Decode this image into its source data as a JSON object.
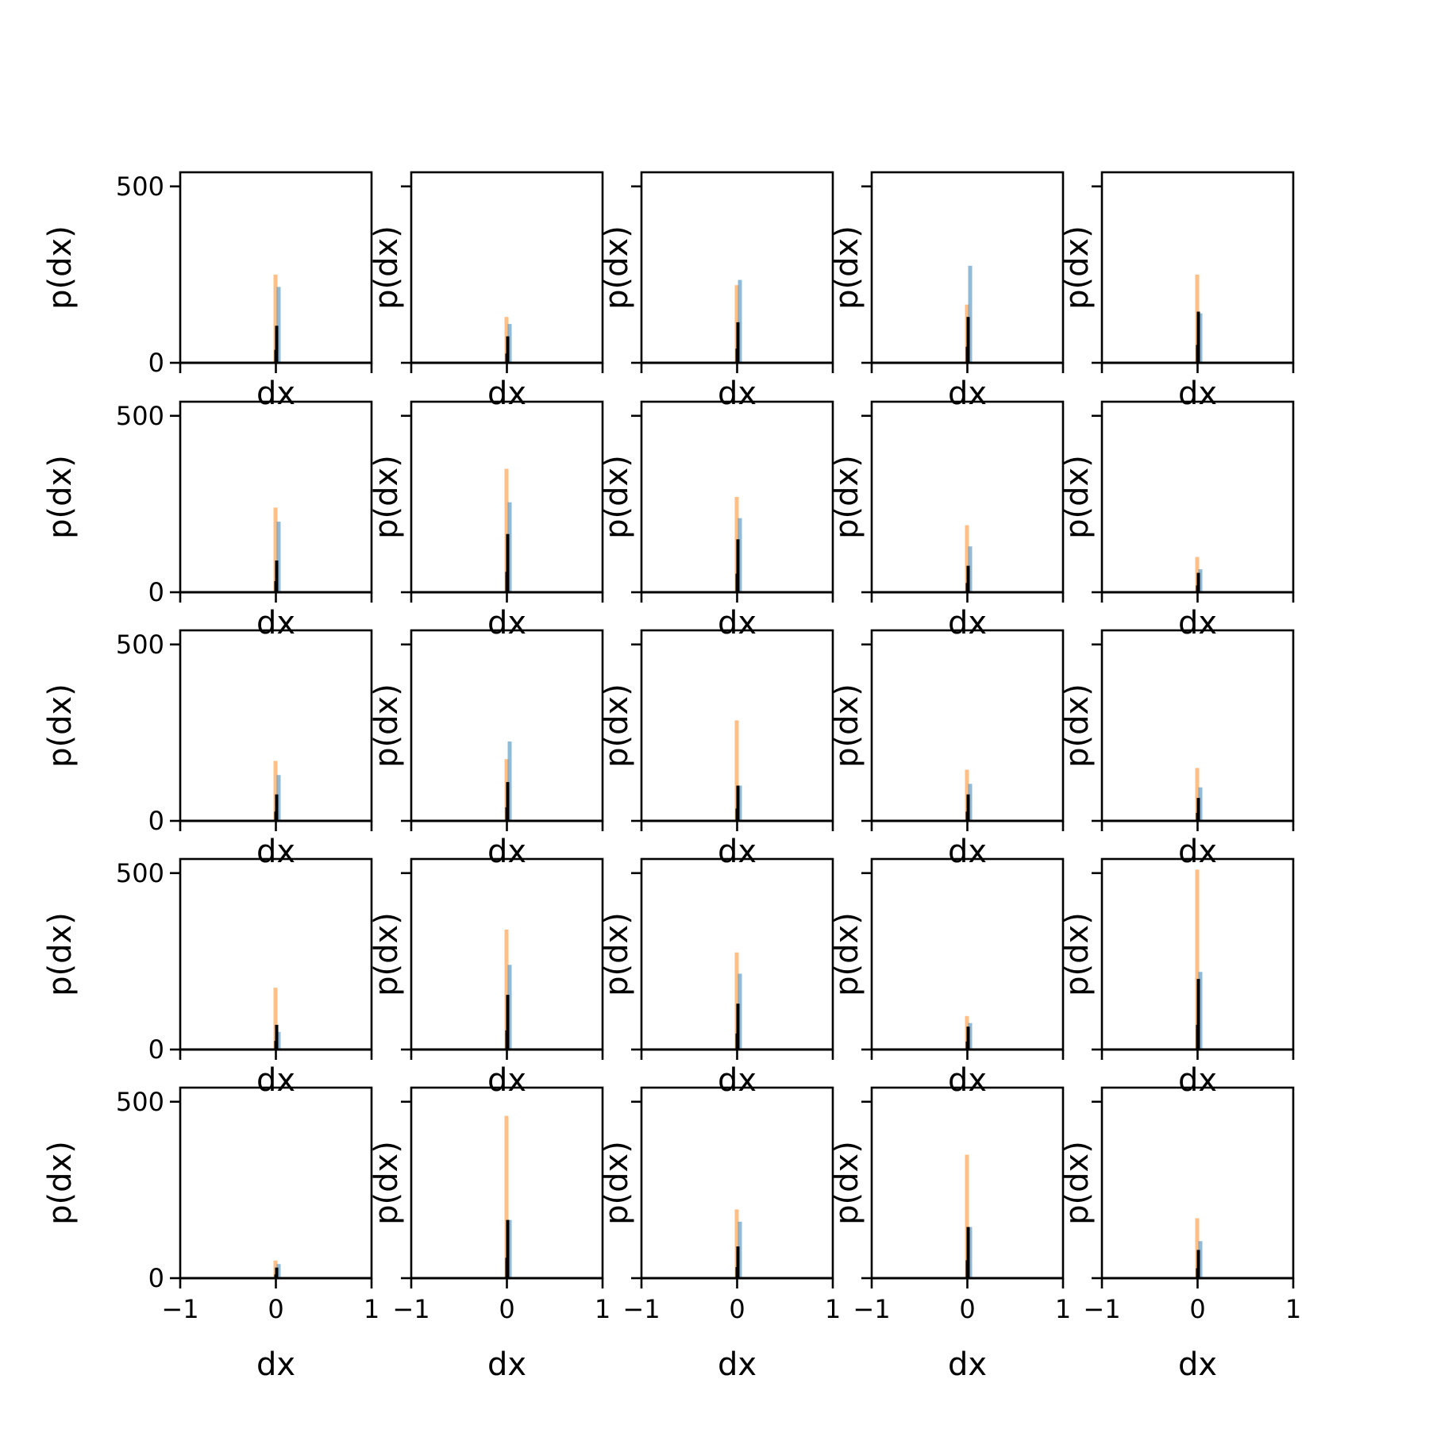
{
  "chart_data": {
    "type": "histogram-grid",
    "rows": 5,
    "cols": 5,
    "xlim": [
      -1,
      1
    ],
    "ylim": [
      0,
      540
    ],
    "x_ticks": [
      -1,
      0,
      1
    ],
    "x_tick_labels": [
      "−1",
      "0",
      "1"
    ],
    "y_ticks": [
      0,
      500
    ],
    "y_tick_labels": [
      "0",
      "500"
    ],
    "xlabel": "dx",
    "ylabel": "p(dx)",
    "grid": false,
    "colors": {
      "series_blue": "#1f77b4",
      "series_orange": "#ff7f0e",
      "series_black": "#000000"
    },
    "panels": [
      {
        "row": 0,
        "col": 0,
        "orange": 250,
        "blue": 215,
        "black": 105
      },
      {
        "row": 0,
        "col": 1,
        "orange": 130,
        "blue": 110,
        "black": 75
      },
      {
        "row": 0,
        "col": 2,
        "orange": 220,
        "blue": 235,
        "black": 115
      },
      {
        "row": 0,
        "col": 3,
        "orange": 165,
        "blue": 275,
        "black": 130
      },
      {
        "row": 0,
        "col": 4,
        "orange": 250,
        "blue": 140,
        "black": 145
      },
      {
        "row": 1,
        "col": 0,
        "orange": 240,
        "blue": 200,
        "black": 90
      },
      {
        "row": 1,
        "col": 1,
        "orange": 350,
        "blue": 255,
        "black": 165
      },
      {
        "row": 1,
        "col": 2,
        "orange": 270,
        "blue": 210,
        "black": 150
      },
      {
        "row": 1,
        "col": 3,
        "orange": 190,
        "blue": 130,
        "black": 75
      },
      {
        "row": 1,
        "col": 4,
        "orange": 100,
        "blue": 65,
        "black": 55
      },
      {
        "row": 2,
        "col": 0,
        "orange": 170,
        "blue": 130,
        "black": 75
      },
      {
        "row": 2,
        "col": 1,
        "orange": 175,
        "blue": 225,
        "black": 110
      },
      {
        "row": 2,
        "col": 2,
        "orange": 285,
        "blue": 100,
        "black": 100
      },
      {
        "row": 2,
        "col": 3,
        "orange": 145,
        "blue": 105,
        "black": 75
      },
      {
        "row": 2,
        "col": 4,
        "orange": 150,
        "blue": 95,
        "black": 65
      },
      {
        "row": 3,
        "col": 0,
        "orange": 175,
        "blue": 50,
        "black": 70
      },
      {
        "row": 3,
        "col": 1,
        "orange": 340,
        "blue": 240,
        "black": 155
      },
      {
        "row": 3,
        "col": 2,
        "orange": 275,
        "blue": 215,
        "black": 130
      },
      {
        "row": 3,
        "col": 3,
        "orange": 95,
        "blue": 75,
        "black": 65
      },
      {
        "row": 3,
        "col": 4,
        "orange": 510,
        "blue": 220,
        "black": 200
      },
      {
        "row": 4,
        "col": 0,
        "orange": 50,
        "blue": 40,
        "black": 30
      },
      {
        "row": 4,
        "col": 1,
        "orange": 460,
        "blue": 165,
        "black": 165
      },
      {
        "row": 4,
        "col": 2,
        "orange": 195,
        "blue": 160,
        "black": 90
      },
      {
        "row": 4,
        "col": 3,
        "orange": 350,
        "blue": 145,
        "black": 145
      },
      {
        "row": 4,
        "col": 4,
        "orange": 170,
        "blue": 105,
        "black": 80
      }
    ]
  }
}
